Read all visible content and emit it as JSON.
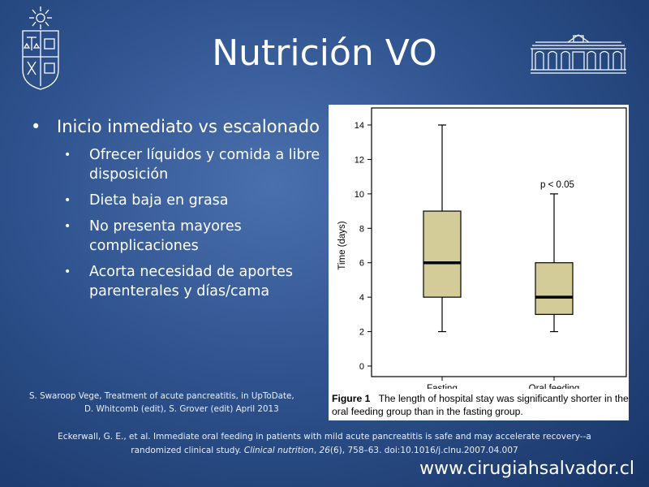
{
  "title": "Nutrición VO",
  "bullets": {
    "main": "Inicio inmediato vs escalonado",
    "sub": [
      "Ofrecer líquidos y comida a libre disposición",
      "Dieta baja en grasa",
      "No presenta mayores complicaciones",
      "Acorta necesidad de aportes parenterales y días/cama"
    ]
  },
  "references": {
    "uptodate_line1": "S. Swaroop Vege, Treatment of acute pancreatitis, in UpToDate,",
    "uptodate_line2": "D. Whitcomb (edit), S. Grover (edit) April 2013",
    "eckerwall_line1": "Eckerwall, G. E., et al. Immediate oral feeding in patients with mild acute pancreatitis is safe and may accelerate recovery--a",
    "eckerwall_line2_a": "randomized clinical study. ",
    "eckerwall_line2_journal": "Clinical nutrition",
    "eckerwall_line2_b": ", ",
    "eckerwall_line2_vol": "26",
    "eckerwall_line2_c": "(6), 758–63. doi:10.1016/j.clnu.2007.04.007"
  },
  "website": "www.cirugiahsalvador.cl",
  "figure": {
    "label": "Figure 1",
    "caption": "The length of hospital stay was significantly shorter in the oral feeding group than in the fasting group."
  },
  "chart_data": {
    "type": "boxplot",
    "ylabel": "Time (days)",
    "ylim": [
      0,
      14
    ],
    "yticks": [
      "0",
      "2",
      "4",
      "6",
      "8",
      "10",
      "12",
      "14"
    ],
    "categories": [
      "Fasting",
      "Oral feeding"
    ],
    "boxes": [
      {
        "category": "Fasting",
        "min": 2,
        "q1": 4,
        "median": 6,
        "q3": 9,
        "max": 14
      },
      {
        "category": "Oral feeding",
        "min": 2,
        "q1": 3,
        "median": 4,
        "q3": 6,
        "max": 10
      }
    ],
    "annotation": "p < 0.05",
    "box_color": "#d4cc98"
  }
}
